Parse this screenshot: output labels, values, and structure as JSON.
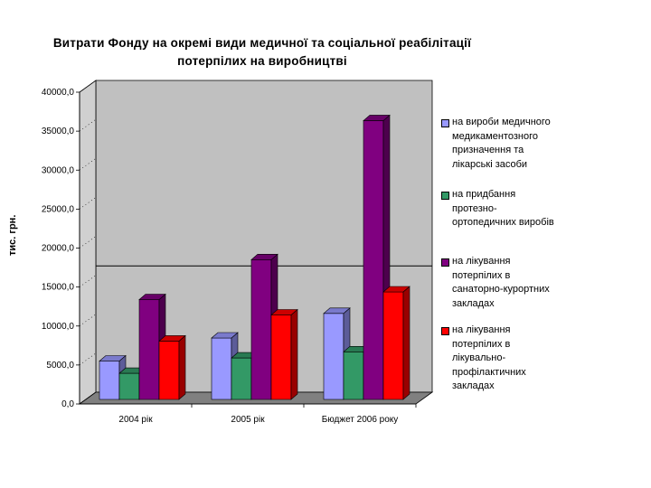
{
  "chart_data": {
    "type": "bar",
    "title_line1": "Витрати Фонду на окремі види медичної та соціальної реабілітації",
    "title_line2": "потерпілих на виробництві",
    "ylabel": "тис. грн.",
    "categories": [
      "2004 рік",
      "2005 рік",
      "Бюджет 2006 року"
    ],
    "ylim": [
      0,
      40000
    ],
    "yticks": [
      "0,0",
      "5000,0",
      "10000,0",
      "15000,0",
      "20000,0",
      "25000,0",
      "30000,0",
      "35000,0",
      "40000,0"
    ],
    "legend_position": "right",
    "series": [
      {
        "name": "на вироби медичного медикаментозного призначення та лікарські засоби",
        "name_lines": [
          "на вироби медичного",
          "медикаментозного",
          "призначення та",
          "лікарські засоби"
        ],
        "color": "#9999ff",
        "values": [
          5000,
          8000,
          11200
        ]
      },
      {
        "name": "на придбання протезно-ортопедичних виробів",
        "name_lines": [
          " на придбання",
          "протезно-",
          "ортопедичних виробів"
        ],
        "color": "#339966",
        "values": [
          3400,
          5400,
          6200
        ]
      },
      {
        "name": "на лікування потерпілих в санаторно-курортних закладах",
        "name_lines": [
          "на лікування",
          "потерпілих в",
          "санаторно-курортних",
          "закладах"
        ],
        "color": "#800080",
        "values": [
          13000,
          18200,
          36300
        ]
      },
      {
        "name": "на лікування потерпілих в лікувально-профілактичних закладах",
        "name_lines": [
          "на лікування",
          "потерпілих в",
          "лікувально-",
          "профілактичних",
          "закладах"
        ],
        "color": "#ff0000",
        "values": [
          7600,
          11000,
          14000
        ]
      }
    ],
    "reference_line": 16200,
    "grid": false
  }
}
